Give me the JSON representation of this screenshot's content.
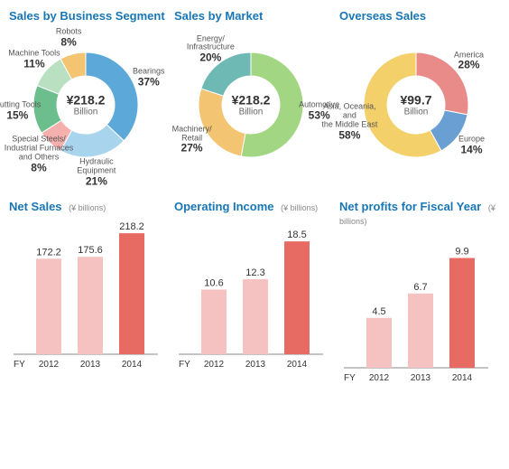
{
  "donuts": [
    {
      "title": "Sales by Business Segment",
      "center_value": "¥218.2",
      "center_caption": "Billion",
      "background": "#ffffff",
      "slices": [
        {
          "label": "Bearings",
          "pct": 37,
          "color": "#5ca8d9"
        },
        {
          "label": "Hydraulic\nEquipment",
          "pct": 21,
          "color": "#a8d4ee"
        },
        {
          "label": "Special Steels/\nIndustrial Furnaces\nand Others",
          "pct": 8,
          "color": "#f5b0ad"
        },
        {
          "label": "Cutting Tools",
          "pct": 15,
          "color": "#6cbf8c"
        },
        {
          "label": "Machine Tools",
          "pct": 11,
          "color": "#b8e0c1"
        },
        {
          "label": "Robots",
          "pct": 8,
          "color": "#f3c572"
        }
      ]
    },
    {
      "title": "Sales by Market",
      "center_value": "¥218.2",
      "center_caption": "Billion",
      "background": "#ffffff",
      "slices": [
        {
          "label": "Automotive",
          "pct": 53,
          "color": "#a2d682"
        },
        {
          "label": "Machinery/\nRetail",
          "pct": 27,
          "color": "#f3c572"
        },
        {
          "label": "Energy/\nInfrastructure",
          "pct": 20,
          "color": "#6fb9b4"
        }
      ]
    },
    {
      "title": "Overseas Sales",
      "center_value": "¥99.7",
      "center_caption": "Billion",
      "background": "#ffffff",
      "slices": [
        {
          "label": "America",
          "pct": 28,
          "color": "#e98b88"
        },
        {
          "label": "Europe",
          "pct": 14,
          "color": "#6a9fd4"
        },
        {
          "label": "Asia, Oceania,\nand\nthe Middle East",
          "pct": 58,
          "color": "#f3d06a"
        }
      ]
    }
  ],
  "bars": [
    {
      "title": "Net Sales",
      "unit": "(¥ billions)",
      "ymax": 220,
      "fy_label": "FY",
      "categories": [
        "2012",
        "2013",
        "2014"
      ],
      "values": [
        172.2,
        175.6,
        218.2
      ],
      "bar_colors": [
        "#f6c1c1",
        "#f6c1c1",
        "#e86b63"
      ],
      "value_labels": [
        "172.2",
        "175.6",
        "218.2"
      ]
    },
    {
      "title": "Operating Income",
      "unit": "(¥ billions)",
      "ymax": 20,
      "fy_label": "FY",
      "categories": [
        "2012",
        "2013",
        "2014"
      ],
      "values": [
        10.6,
        12.3,
        18.5
      ],
      "bar_colors": [
        "#f6c1c1",
        "#f6c1c1",
        "#e86b63"
      ],
      "value_labels": [
        "10.6",
        "12.3",
        "18.5"
      ]
    },
    {
      "title": "Net profits for Fiscal Year",
      "unit": "(¥ billions)",
      "ymax": 11,
      "fy_label": "FY",
      "categories": [
        "2012",
        "2013",
        "2014"
      ],
      "values": [
        4.5,
        6.7,
        9.9
      ],
      "bar_colors": [
        "#f6c1c1",
        "#f6c1c1",
        "#e86b63"
      ],
      "value_labels": [
        "4.5",
        "6.7",
        "9.9"
      ]
    }
  ],
  "style": {
    "title_color": "#1976b5",
    "axis_color": "#888888",
    "label_color": "#555555"
  }
}
